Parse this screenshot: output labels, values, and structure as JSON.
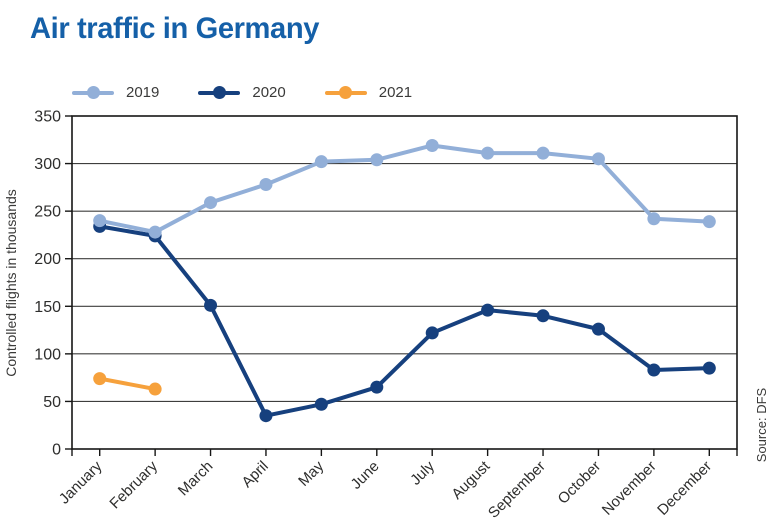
{
  "header": {
    "title": "Air traffic in Germany"
  },
  "colors": {
    "title": "#1560A8",
    "series_2019": "#92AFD8",
    "series_2020": "#16407E",
    "series_2021": "#F6A13C",
    "grid": "#3E3E3D",
    "axis": "#161615",
    "tick_text": "#2E2E2D",
    "label_text": "#3A3A39"
  },
  "chart_data": {
    "type": "line",
    "title": "Air traffic in Germany",
    "xlabel": "",
    "ylabel": "Controlled flights in thousands",
    "source": "Source: DFS",
    "ylim": [
      0,
      350
    ],
    "ytick_interval": 50,
    "yticks": [
      0,
      50,
      100,
      150,
      200,
      250,
      300,
      350
    ],
    "grid": "horizontal",
    "legend_position": "top-left",
    "xtick_rotation": 45,
    "categories": [
      "January",
      "February",
      "March",
      "April",
      "May",
      "June",
      "July",
      "August",
      "September",
      "October",
      "November",
      "December"
    ],
    "series": [
      {
        "name": "2019",
        "color": "#92AFD8",
        "values": [
          240,
          228,
          259,
          278,
          302,
          304,
          319,
          311,
          311,
          305,
          242,
          239
        ]
      },
      {
        "name": "2020",
        "color": "#16407E",
        "values": [
          234,
          224,
          151,
          35,
          47,
          65,
          122,
          146,
          140,
          126,
          83,
          85
        ]
      },
      {
        "name": "2021",
        "color": "#F6A13C",
        "values": [
          74,
          63
        ]
      }
    ]
  }
}
